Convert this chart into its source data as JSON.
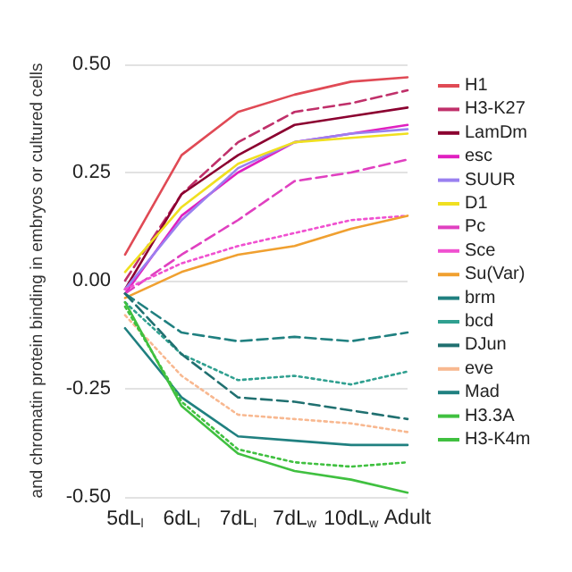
{
  "chart_data": {
    "type": "line",
    "ylabel": "and chromatin protein binding in embryos or cultured cells",
    "categories": [
      "5dL$_{l}$",
      "6dL$_{l}$",
      "7dL$_{l}$",
      "7dL$_{w}$",
      "10dL$_{w}$",
      "Adult"
    ],
    "ylim": [
      -0.5,
      0.5
    ],
    "yticks": [
      {
        "value": -0.5,
        "label": "-0.50"
      },
      {
        "value": -0.25,
        "label": "-0.25"
      },
      {
        "value": 0,
        "label": "0.00"
      },
      {
        "value": 0.25,
        "label": "0.25"
      },
      {
        "value": 0.5,
        "label": "0.50"
      }
    ],
    "grid": "y",
    "legend": "right",
    "marker": "none",
    "series": [
      {
        "name": "H1",
        "color": "#e04a55",
        "line_style": "solid",
        "values": [
          0.06,
          0.29,
          0.39,
          0.43,
          0.46,
          0.47
        ]
      },
      {
        "name": "H3-K27",
        "color": "#c0306a",
        "line_style": "dashed",
        "values": [
          0.0,
          0.2,
          0.32,
          0.39,
          0.41,
          0.44
        ]
      },
      {
        "name": "LamDm",
        "color": "#8b0030",
        "line_style": "solid",
        "values": [
          -0.02,
          0.2,
          0.29,
          0.36,
          0.38,
          0.4
        ]
      },
      {
        "name": "esc",
        "color": "#e020c0",
        "line_style": "solid",
        "values": [
          -0.03,
          0.15,
          0.25,
          0.32,
          0.34,
          0.36
        ]
      },
      {
        "name": "SUUR",
        "color": "#9a80f0",
        "line_style": "solid",
        "values": [
          -0.02,
          0.14,
          0.26,
          0.32,
          0.34,
          0.35
        ]
      },
      {
        "name": "D1",
        "color": "#f0e020",
        "line_style": "solid",
        "values": [
          0.02,
          0.17,
          0.27,
          0.32,
          0.33,
          0.34
        ]
      },
      {
        "name": "Pc",
        "color": "#e040c0",
        "line_style": "dashed",
        "values": [
          -0.03,
          0.06,
          0.14,
          0.23,
          0.25,
          0.28
        ]
      },
      {
        "name": "Sce",
        "color": "#f050d0",
        "line_style": "dotted",
        "values": [
          -0.02,
          0.04,
          0.08,
          0.11,
          0.14,
          0.15
        ]
      },
      {
        "name": "Su(Var)",
        "color": "#f0a030",
        "line_style": "solid",
        "values": [
          -0.04,
          0.02,
          0.06,
          0.08,
          0.12,
          0.15
        ]
      },
      {
        "name": "brm",
        "color": "#208080",
        "line_style": "dashed",
        "values": [
          -0.03,
          -0.12,
          -0.14,
          -0.13,
          -0.14,
          -0.12
        ]
      },
      {
        "name": "bcd",
        "color": "#30a090",
        "line_style": "dotted",
        "values": [
          -0.05,
          -0.17,
          -0.23,
          -0.22,
          -0.24,
          -0.21
        ]
      },
      {
        "name": "DJun",
        "color": "#207070",
        "line_style": "dashed",
        "values": [
          -0.03,
          -0.17,
          -0.27,
          -0.28,
          -0.3,
          -0.32
        ]
      },
      {
        "name": "eve",
        "color": "#f8b890",
        "line_style": "dotted",
        "values": [
          -0.08,
          -0.22,
          -0.31,
          -0.32,
          -0.33,
          -0.35
        ]
      },
      {
        "name": "Mad",
        "color": "#208080",
        "line_style": "solid",
        "values": [
          -0.11,
          -0.27,
          -0.36,
          -0.37,
          -0.38,
          -0.38
        ]
      },
      {
        "name": "H3.3A",
        "color": "#40c040",
        "line_style": "dotted",
        "values": [
          -0.06,
          -0.28,
          -0.39,
          -0.42,
          -0.43,
          -0.42
        ]
      },
      {
        "name": "H3-K4m",
        "color": "#40c040",
        "line_style": "solid",
        "values": [
          -0.05,
          -0.29,
          -0.4,
          -0.44,
          -0.46,
          -0.49
        ]
      }
    ]
  }
}
